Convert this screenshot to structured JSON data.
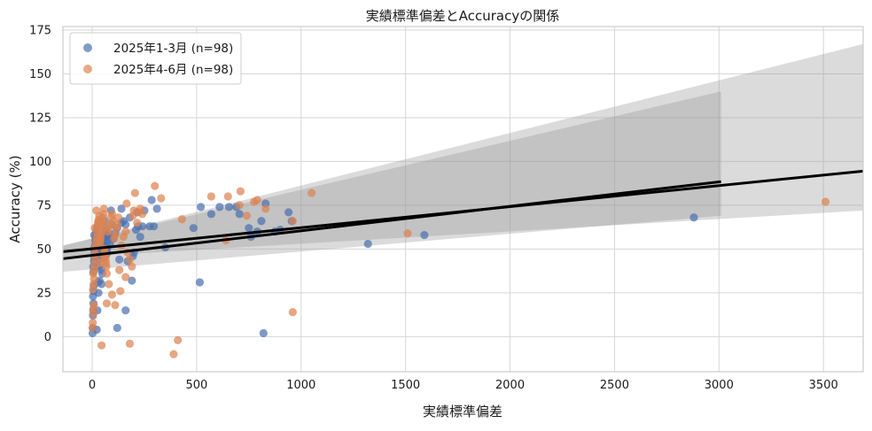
{
  "chart_data": {
    "type": "scatter",
    "title": "実績標準偏差とAccuracyの関係",
    "xlabel": "実績標準偏差",
    "ylabel": "Accuracy (%)",
    "xlim": [
      -140,
      3690
    ],
    "ylim": [
      -20,
      177
    ],
    "xticks": [
      0,
      500,
      1000,
      1500,
      2000,
      2500,
      3000,
      3500
    ],
    "yticks": [
      0,
      25,
      50,
      75,
      100,
      125,
      150,
      175
    ],
    "grid": true,
    "legend_position": "top-left",
    "series": [
      {
        "name": "2025年1-3月 (n=98)",
        "color": "#4c72b0",
        "points": [
          [
            2,
            2
          ],
          [
            3,
            5
          ],
          [
            4,
            12
          ],
          [
            5,
            15
          ],
          [
            6,
            19
          ],
          [
            4,
            23
          ],
          [
            7,
            26
          ],
          [
            8,
            29
          ],
          [
            6,
            37
          ],
          [
            5,
            40
          ],
          [
            9,
            43
          ],
          [
            10,
            45
          ],
          [
            12,
            48
          ],
          [
            8,
            50
          ],
          [
            14,
            52
          ],
          [
            15,
            55
          ],
          [
            18,
            57
          ],
          [
            20,
            59
          ],
          [
            10,
            58
          ],
          [
            22,
            61
          ],
          [
            25,
            63
          ],
          [
            30,
            40
          ],
          [
            32,
            44
          ],
          [
            35,
            47
          ],
          [
            38,
            49
          ],
          [
            40,
            50
          ],
          [
            42,
            52
          ],
          [
            45,
            38
          ],
          [
            48,
            36
          ],
          [
            50,
            53
          ],
          [
            55,
            55
          ],
          [
            58,
            57
          ],
          [
            60,
            58
          ],
          [
            62,
            60
          ],
          [
            65,
            62
          ],
          [
            68,
            47
          ],
          [
            70,
            49
          ],
          [
            72,
            51
          ],
          [
            75,
            55
          ],
          [
            78,
            57
          ],
          [
            80,
            59
          ],
          [
            85,
            53
          ],
          [
            30,
            25
          ],
          [
            28,
            31
          ],
          [
            25,
            15
          ],
          [
            22,
            4
          ],
          [
            35,
            32
          ],
          [
            120,
            5
          ],
          [
            160,
            15
          ],
          [
            190,
            32
          ],
          [
            130,
            44
          ],
          [
            170,
            43
          ],
          [
            195,
            46
          ],
          [
            200,
            48
          ],
          [
            210,
            61
          ],
          [
            220,
            63
          ],
          [
            230,
            57
          ],
          [
            160,
            64
          ],
          [
            180,
            68
          ],
          [
            215,
            71
          ],
          [
            240,
            63
          ],
          [
            140,
            73
          ],
          [
            250,
            72
          ],
          [
            275,
            63
          ],
          [
            295,
            63
          ],
          [
            285,
            78
          ],
          [
            310,
            73
          ],
          [
            350,
            51
          ],
          [
            485,
            62
          ],
          [
            515,
            31
          ],
          [
            520,
            74
          ],
          [
            570,
            70
          ],
          [
            610,
            74
          ],
          [
            655,
            74
          ],
          [
            690,
            74
          ],
          [
            705,
            70
          ],
          [
            750,
            62
          ],
          [
            760,
            57
          ],
          [
            790,
            60
          ],
          [
            810,
            66
          ],
          [
            820,
            2
          ],
          [
            830,
            76
          ],
          [
            875,
            60
          ],
          [
            900,
            61
          ],
          [
            940,
            71
          ],
          [
            955,
            66
          ],
          [
            1320,
            53
          ],
          [
            1590,
            58
          ],
          [
            2880,
            68
          ],
          [
            60,
            66
          ],
          [
            95,
            64
          ],
          [
            100,
            56
          ],
          [
            110,
            59
          ],
          [
            120,
            62
          ],
          [
            140,
            65
          ],
          [
            150,
            66
          ],
          [
            90,
            72
          ],
          [
            45,
            30
          ]
        ]
      },
      {
        "name": "2025年4-6月 (n=98)",
        "color": "#dd8452",
        "points": [
          [
            2,
            5
          ],
          [
            3,
            8
          ],
          [
            5,
            13
          ],
          [
            6,
            16
          ],
          [
            8,
            18
          ],
          [
            4,
            27
          ],
          [
            7,
            30
          ],
          [
            9,
            33
          ],
          [
            5,
            36
          ],
          [
            10,
            38
          ],
          [
            12,
            41
          ],
          [
            14,
            44
          ],
          [
            16,
            47
          ],
          [
            10,
            50
          ],
          [
            18,
            52
          ],
          [
            20,
            55
          ],
          [
            22,
            57
          ],
          [
            24,
            59
          ],
          [
            12,
            62
          ],
          [
            26,
            63
          ],
          [
            28,
            65
          ],
          [
            30,
            66
          ],
          [
            32,
            67
          ],
          [
            34,
            69
          ],
          [
            20,
            72
          ],
          [
            36,
            52
          ],
          [
            38,
            54
          ],
          [
            40,
            56
          ],
          [
            42,
            58
          ],
          [
            44,
            60
          ],
          [
            46,
            62
          ],
          [
            48,
            64
          ],
          [
            50,
            66
          ],
          [
            52,
            68
          ],
          [
            54,
            70
          ],
          [
            56,
            73
          ],
          [
            58,
            50
          ],
          [
            60,
            48
          ],
          [
            62,
            46
          ],
          [
            64,
            44
          ],
          [
            66,
            42
          ],
          [
            68,
            40
          ],
          [
            70,
            36
          ],
          [
            75,
            60
          ],
          [
            80,
            62
          ],
          [
            85,
            64
          ],
          [
            90,
            68
          ],
          [
            95,
            70
          ],
          [
            100,
            66
          ],
          [
            105,
            56
          ],
          [
            110,
            58
          ],
          [
            115,
            62
          ],
          [
            120,
            64
          ],
          [
            125,
            68
          ],
          [
            130,
            38
          ],
          [
            135,
            26
          ],
          [
            140,
            52
          ],
          [
            150,
            57
          ],
          [
            160,
            60
          ],
          [
            165,
            76
          ],
          [
            170,
            48
          ],
          [
            180,
            44
          ],
          [
            190,
            40
          ],
          [
            195,
            69
          ],
          [
            200,
            72
          ],
          [
            205,
            82
          ],
          [
            215,
            65
          ],
          [
            220,
            71
          ],
          [
            230,
            73
          ],
          [
            240,
            70
          ],
          [
            300,
            86
          ],
          [
            330,
            79
          ],
          [
            430,
            67
          ],
          [
            570,
            80
          ],
          [
            650,
            80
          ],
          [
            705,
            75
          ],
          [
            710,
            83
          ],
          [
            740,
            69
          ],
          [
            775,
            77
          ],
          [
            790,
            78
          ],
          [
            830,
            73
          ],
          [
            960,
            66
          ],
          [
            960,
            14
          ],
          [
            1050,
            82
          ],
          [
            1510,
            59
          ],
          [
            3510,
            77
          ],
          [
            45,
            -5
          ],
          [
            70,
            19
          ],
          [
            80,
            30
          ],
          [
            95,
            24
          ],
          [
            110,
            18
          ],
          [
            160,
            34
          ],
          [
            180,
            -4
          ],
          [
            390,
            -10
          ],
          [
            410,
            -2
          ],
          [
            640,
            55
          ],
          [
            40,
            42
          ],
          [
            55,
            45
          ]
        ]
      }
    ],
    "trend_lines": [
      {
        "series": "2025年1-3月 (n=98)",
        "x": [
          -140,
          3010
        ],
        "y": [
          44.5,
          88.5
        ],
        "ci_at_end": [
          69,
          140
        ],
        "ci_at_start": [
          37,
          52
        ]
      },
      {
        "series": "2025年4-6月 (n=98)",
        "x": [
          -140,
          3690
        ],
        "y": [
          48.5,
          94.5
        ],
        "ci_at_end": [
          72,
          167
        ],
        "ci_at_start": [
          45,
          52
        ]
      }
    ]
  }
}
